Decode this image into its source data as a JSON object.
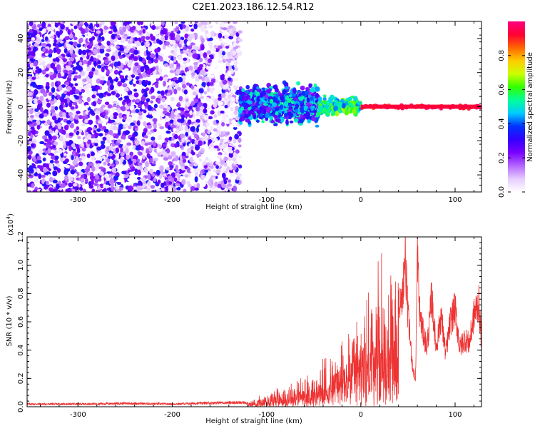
{
  "figure": {
    "title": "C2E1.2023.186.12.54.R12"
  },
  "chart_data": [
    {
      "type": "heatmap",
      "xlabel": "Height of straight line (km)",
      "ylabel": "Frequency (Hz)",
      "xlim": [
        -354,
        128
      ],
      "ylim": [
        -50,
        50
      ],
      "xticks": [
        -300,
        -200,
        -100,
        0,
        100
      ],
      "yticks": [
        -40,
        -20,
        0,
        20,
        40
      ],
      "colorbar": {
        "label": "Normalized spectral amplitude",
        "ticks": [
          "0.0",
          "0.2",
          "0.4",
          "0.6",
          "0.8"
        ],
        "range": [
          0,
          1
        ],
        "colormap": [
          "#ffffff",
          "#e6ccff",
          "#b366ff",
          "#7a00ff",
          "#3300ff",
          "#0033ff",
          "#00ccff",
          "#00ff99",
          "#33ff00",
          "#ccff00",
          "#ffcc00",
          "#ff6600",
          "#ff0033",
          "#ff0080"
        ]
      },
      "regions": [
        {
          "x_range": [
            -354,
            -128
          ],
          "y_range": [
            -50,
            50
          ],
          "amplitude_range": [
            0.0,
            0.35
          ],
          "description": "broadband noise"
        },
        {
          "x_range": [
            -128,
            -45
          ],
          "y_range": [
            -10,
            12
          ],
          "amplitude_range": [
            0.2,
            0.55
          ],
          "description": "tone band"
        },
        {
          "x_range": [
            -45,
            0
          ],
          "y_range": [
            -5,
            5
          ],
          "amplitude_range": [
            0.4,
            0.7
          ],
          "description": "tone band"
        },
        {
          "x_range": [
            0,
            128
          ],
          "y_range": [
            -1.5,
            1.5
          ],
          "amplitude_range": [
            0.85,
            1.0
          ],
          "description": "tone"
        }
      ]
    },
    {
      "type": "line",
      "xlabel": "Height of straight line (km)",
      "ylabel": "SNR (10 * v/v)",
      "y_multiplier": "(x10",
      "y_multiplier_exp": "4",
      "y_multiplier_close": ")",
      "xlim": [
        -354,
        128
      ],
      "ylim": [
        0,
        1.2
      ],
      "xticks": [
        -300,
        -200,
        -100,
        0,
        100
      ],
      "yticks": [
        "0.0",
        "0.2",
        "0.4",
        "0.6",
        "0.8",
        "1.0",
        "1.2"
      ],
      "color": "#ee3333",
      "series": [
        {
          "x": [
            -354,
            -300,
            -250,
            -200,
            -150,
            -120,
            -110,
            -100,
            -90,
            -80,
            -70,
            -60,
            -50,
            -40,
            -30,
            -20,
            -10,
            0,
            10,
            15,
            20,
            25,
            30,
            35,
            40,
            43,
            47,
            50,
            55,
            58,
            60,
            62,
            65,
            70,
            73,
            75,
            78,
            80,
            85,
            90,
            95,
            100,
            105,
            110,
            115,
            120,
            125,
            128
          ],
          "y": [
            0.02,
            0.02,
            0.025,
            0.02,
            0.03,
            0.03,
            0.06,
            0.1,
            0.13,
            0.15,
            0.18,
            0.2,
            0.24,
            0.3,
            0.38,
            0.45,
            0.5,
            0.62,
            0.8,
            0.9,
            1.0,
            0.95,
            0.8,
            0.85,
            0.9,
            0.75,
            1.15,
            0.7,
            0.3,
            0.2,
            1.22,
            0.75,
            0.6,
            0.45,
            0.65,
            0.85,
            0.6,
            0.45,
            0.7,
            0.4,
            0.65,
            0.75,
            0.45,
            0.52,
            0.48,
            0.7,
            0.8,
            0.5
          ]
        }
      ]
    }
  ]
}
